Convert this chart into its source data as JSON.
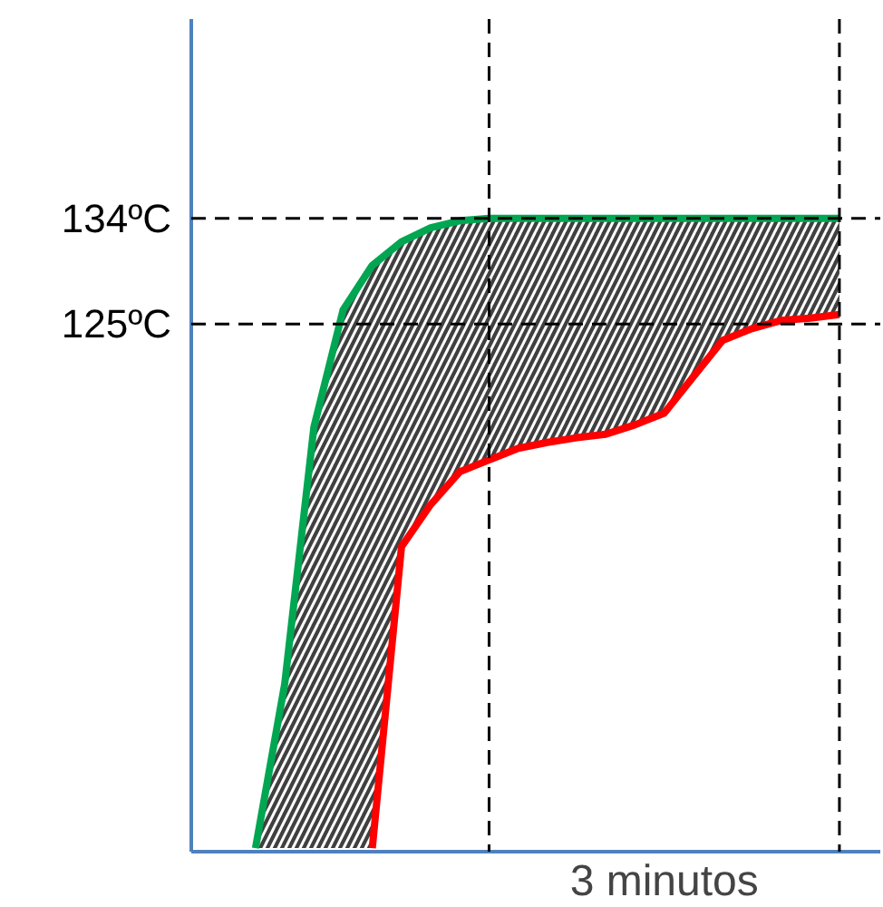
{
  "chart_data": {
    "type": "line",
    "ylim": [
      80,
      151
    ],
    "categories": [
      null,
      null,
      null,
      null,
      null,
      null,
      null,
      null,
      null,
      null,
      null,
      null,
      null,
      null,
      null,
      null,
      null,
      null,
      null,
      null,
      null
    ],
    "yticks": [
      {
        "value": 125,
        "label": "125ºC"
      },
      {
        "value": 134,
        "label": "134ºC"
      }
    ],
    "grid": false,
    "marker": "none",
    "line_style": "solid",
    "series": [
      {
        "color": "#00a651",
        "values": [
          80.3,
          94.3,
          116.2,
          126.2,
          130,
          132,
          133.2,
          133.8,
          134,
          134,
          134,
          134,
          134,
          134,
          134,
          134,
          134,
          134,
          134,
          134,
          134
        ],
        "lower": [
          80.3,
          80.3,
          80.3,
          80.3,
          80.3,
          106,
          109.6,
          112.4,
          113.4,
          114.4,
          114.9,
          115.3,
          115.6,
          116.4,
          117.4,
          120.5,
          123.6,
          124.6,
          125.3,
          125.5,
          125.8
        ],
        "upper": [
          80.3,
          94.3,
          116.2,
          126.2,
          130,
          132,
          133.2,
          133.8,
          134,
          134,
          134,
          134,
          134,
          134,
          134,
          134,
          134,
          134,
          134,
          134,
          134
        ]
      },
      {
        "color": "#ff0000",
        "values": [
          null,
          null,
          null,
          null,
          80.3,
          106,
          109.6,
          112.4,
          113.4,
          114.4,
          114.9,
          115.3,
          115.6,
          116.4,
          117.4,
          120.5,
          123.6,
          124.6,
          125.3,
          125.5,
          125.8
        ]
      }
    ],
    "ref_lines": [
      {
        "axis": "y",
        "value": 134,
        "line_style": "dashed",
        "color": "#000000"
      },
      {
        "axis": "y",
        "value": 125,
        "line_style": "dashed",
        "color": "#000000"
      }
    ],
    "annotations": [
      "3 minutos"
    ]
  }
}
